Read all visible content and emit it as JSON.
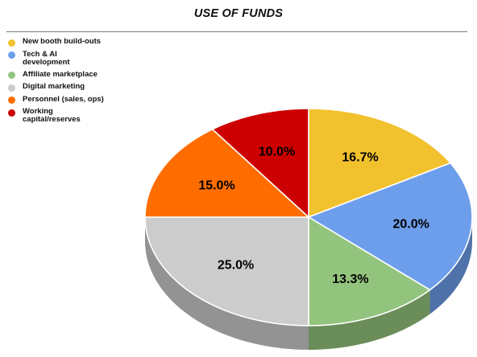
{
  "chart_data": {
    "type": "pie",
    "title": "USE OF FUNDS",
    "style": "3d",
    "legend_position": "top-left",
    "categories": [
      "New booth build-outs",
      "Tech & AI development",
      "Affiliate marketplace",
      "Digital marketing",
      "Personnel (sales, ops)",
      "Working capital/reserves"
    ],
    "legend_lines": [
      [
        "New booth build-outs"
      ],
      [
        "Tech & AI",
        "development"
      ],
      [
        "Affiliate marketplace"
      ],
      [
        "Digital marketing"
      ],
      [
        "Personnel (sales, ops)"
      ],
      [
        "Working",
        "capital/reserves"
      ]
    ],
    "values": [
      16.7,
      20.0,
      13.3,
      25.0,
      15.0,
      10.0
    ],
    "labels": [
      "16.7%",
      "20.0%",
      "13.3%",
      "25.0%",
      "15.0%",
      "10.0%"
    ],
    "colors": [
      "#F2C12E",
      "#6D9EEB",
      "#93C47D",
      "#CCCCCC",
      "#FF6D01",
      "#CC0000"
    ]
  }
}
